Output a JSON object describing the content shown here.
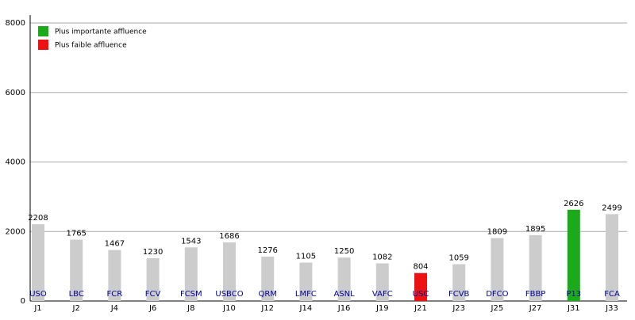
{
  "chart_data": {
    "type": "bar",
    "categories": [
      "J1",
      "J2",
      "J4",
      "J6",
      "J8",
      "J10",
      "J12",
      "J14",
      "J16",
      "J19",
      "J21",
      "J23",
      "J25",
      "J27",
      "J31",
      "J33"
    ],
    "bar_labels": [
      "USO",
      "LBC",
      "FCR",
      "FCV",
      "FCSM",
      "USBCO",
      "QRM",
      "LMFC",
      "ASNL",
      "VAFC",
      "USC",
      "FCVB",
      "DFCO",
      "FBBP",
      "P13",
      "FCA"
    ],
    "values": [
      2208,
      1765,
      1467,
      1230,
      1543,
      1686,
      1276,
      1105,
      1250,
      1082,
      804,
      1059,
      1809,
      1895,
      2626,
      2499
    ],
    "colors": [
      "#cccccc",
      "#cccccc",
      "#cccccc",
      "#cccccc",
      "#cccccc",
      "#cccccc",
      "#cccccc",
      "#cccccc",
      "#cccccc",
      "#cccccc",
      "#ee1111",
      "#cccccc",
      "#cccccc",
      "#cccccc",
      "#1aaa1a",
      "#cccccc"
    ],
    "legend": [
      {
        "label": "Plus importante affluence",
        "color": "#1aaa1a"
      },
      {
        "label": "Plus faible affluence",
        "color": "#ee1111"
      }
    ],
    "legend_position": "top-left",
    "ylim": [
      0,
      8000
    ],
    "yticks": [
      0,
      2000,
      4000,
      6000,
      8000
    ],
    "grid": true
  }
}
